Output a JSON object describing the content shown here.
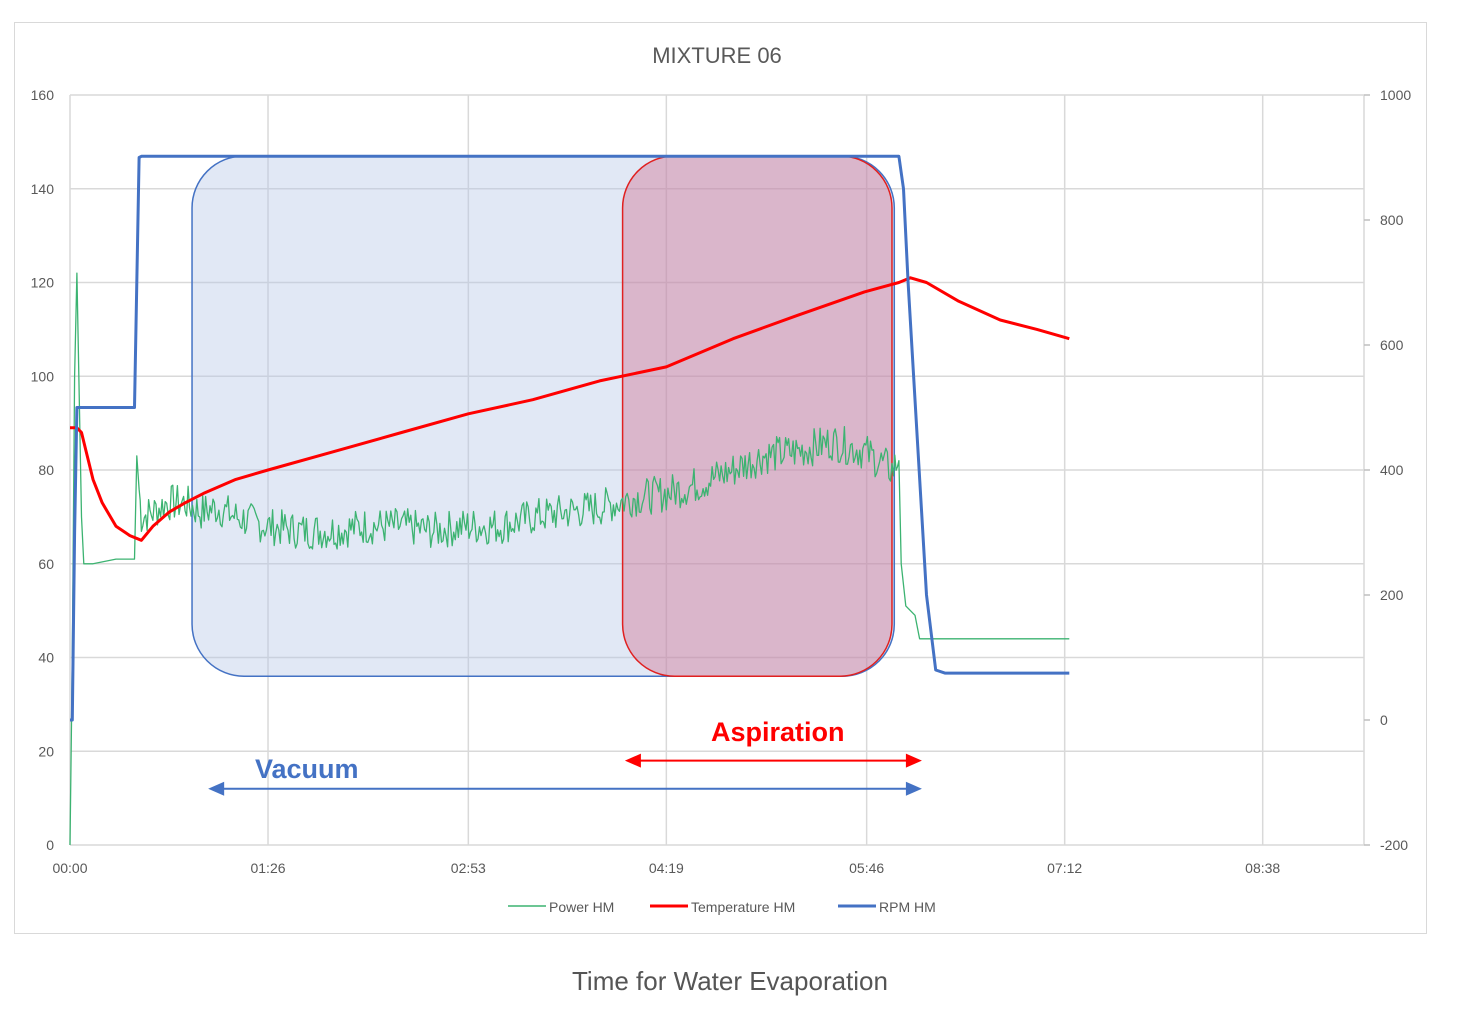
{
  "chart_data": {
    "type": "line",
    "title": "MIXTURE 06",
    "x_tick_labels": [
      "00:00",
      "01:26",
      "02:53",
      "04:19",
      "05:46",
      "07:12",
      "08:38"
    ],
    "x_ticks_seconds": [
      0,
      86,
      173,
      259,
      346,
      432,
      518
    ],
    "x_range_seconds": [
      0,
      562
    ],
    "y_left": {
      "range": [
        0,
        160
      ],
      "ticks": [
        0,
        20,
        40,
        60,
        80,
        100,
        120,
        140,
        160
      ]
    },
    "y_right": {
      "range": [
        -200,
        1000
      ],
      "ticks": [
        -200,
        0,
        200,
        400,
        600,
        800,
        1000
      ]
    },
    "grid": true,
    "legend_position": "bottom",
    "series": [
      {
        "name": "Power HM",
        "axis": "left",
        "color": "#3cb371",
        "points": [
          [
            0,
            0
          ],
          [
            1,
            40
          ],
          [
            2,
            100
          ],
          [
            3,
            122
          ],
          [
            4,
            96
          ],
          [
            5,
            70
          ],
          [
            6,
            60
          ],
          [
            10,
            60
          ],
          [
            20,
            61
          ],
          [
            28,
            61
          ],
          [
            29,
            83
          ],
          [
            30,
            76
          ],
          [
            31,
            70
          ],
          [
            36,
            71
          ],
          [
            42,
            73
          ],
          [
            50,
            73
          ],
          [
            57,
            71
          ],
          [
            64,
            72
          ],
          [
            72,
            70
          ],
          [
            86,
            68
          ],
          [
            100,
            67
          ],
          [
            114,
            67
          ],
          [
            128,
            68
          ],
          [
            144,
            68
          ],
          [
            158,
            67
          ],
          [
            172,
            68
          ],
          [
            187,
            68
          ],
          [
            201,
            70
          ],
          [
            215,
            71
          ],
          [
            230,
            72
          ],
          [
            244,
            74
          ],
          [
            259,
            75
          ],
          [
            273,
            77
          ],
          [
            288,
            80
          ],
          [
            301,
            83
          ],
          [
            316,
            84
          ],
          [
            331,
            86
          ],
          [
            345,
            84
          ],
          [
            357,
            80
          ],
          [
            360,
            82
          ],
          [
            361,
            60
          ],
          [
            363,
            51
          ],
          [
            367,
            49
          ],
          [
            369,
            44
          ],
          [
            380,
            44
          ],
          [
            400,
            44
          ],
          [
            420,
            44
          ],
          [
            434,
            44
          ]
        ]
      },
      {
        "name": "Temperature HM",
        "axis": "left",
        "color": "#ff0000",
        "points": [
          [
            0,
            89
          ],
          [
            3,
            89
          ],
          [
            5,
            88
          ],
          [
            7,
            84
          ],
          [
            10,
            78
          ],
          [
            14,
            73
          ],
          [
            20,
            68
          ],
          [
            26,
            66
          ],
          [
            31,
            65
          ],
          [
            36,
            68
          ],
          [
            43,
            71
          ],
          [
            50,
            73
          ],
          [
            58,
            75
          ],
          [
            72,
            78
          ],
          [
            86,
            80
          ],
          [
            115,
            84
          ],
          [
            144,
            88
          ],
          [
            173,
            92
          ],
          [
            201,
            95
          ],
          [
            230,
            99
          ],
          [
            259,
            102
          ],
          [
            288,
            108
          ],
          [
            316,
            113
          ],
          [
            345,
            118
          ],
          [
            360,
            120
          ],
          [
            365,
            121
          ],
          [
            372,
            120
          ],
          [
            386,
            116
          ],
          [
            404,
            112
          ],
          [
            420,
            110
          ],
          [
            434,
            108
          ]
        ]
      },
      {
        "name": "RPM HM",
        "axis": "right",
        "color": "#4472c4",
        "points": [
          [
            0,
            0
          ],
          [
            1,
            0
          ],
          [
            2,
            300
          ],
          [
            3,
            500
          ],
          [
            4,
            500
          ],
          [
            10,
            500
          ],
          [
            28,
            500
          ],
          [
            29,
            700
          ],
          [
            30,
            900
          ],
          [
            31,
            902
          ],
          [
            100,
            902
          ],
          [
            200,
            902
          ],
          [
            300,
            902
          ],
          [
            360,
            902
          ],
          [
            362,
            850
          ],
          [
            364,
            700
          ],
          [
            368,
            450
          ],
          [
            372,
            200
          ],
          [
            376,
            80
          ],
          [
            380,
            75
          ],
          [
            400,
            75
          ],
          [
            434,
            75
          ]
        ]
      }
    ],
    "annotations": [
      {
        "label": "Vacuum",
        "color": "#4472c4",
        "x_start_seconds": 53,
        "x_end_seconds": 358,
        "y_start": 36,
        "y_end": 147,
        "arrow_y": 12,
        "arrow_from": 60,
        "arrow_to": 370
      },
      {
        "label": "Aspiration",
        "color": "#ff0000",
        "x_start_seconds": 240,
        "x_end_seconds": 357,
        "y_start": 36,
        "y_end": 147,
        "arrow_y": 18,
        "arrow_from": 241,
        "arrow_to": 370
      }
    ]
  },
  "caption": "Time for Water Evaporation"
}
